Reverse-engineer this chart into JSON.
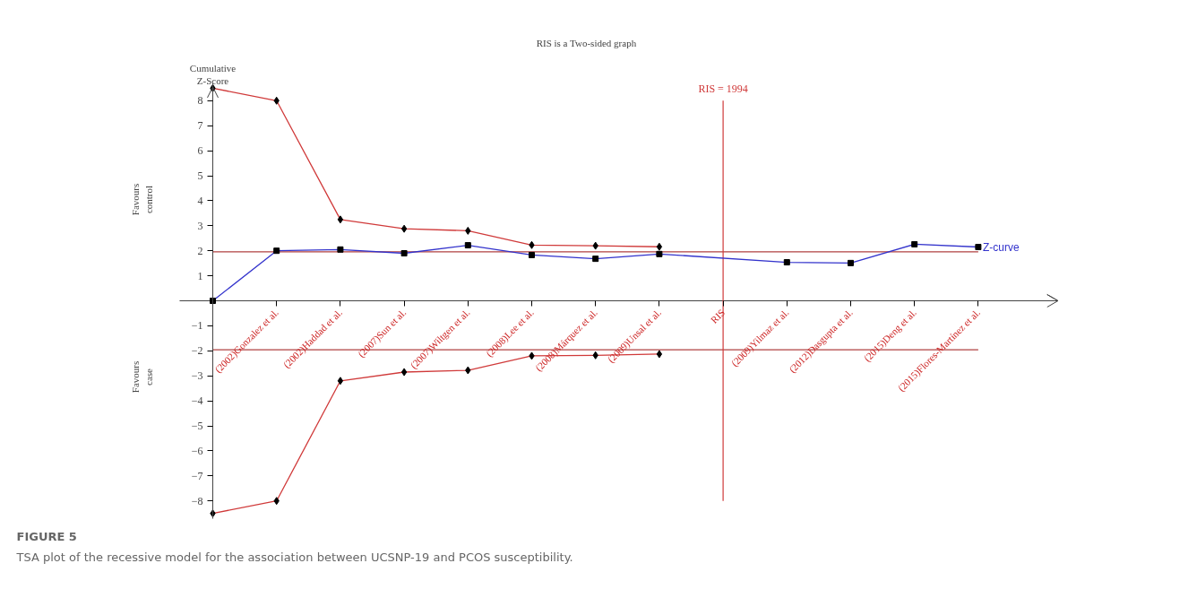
{
  "chart_data": {
    "type": "line",
    "title": "RIS is a Two-sided graph",
    "categories": [
      null,
      "(2002)Gonzalez et al.",
      "(2002)Haddad et al.",
      "(2007)Sun et al.",
      "(2007)Wiltgen et al.",
      "(2008)Lee et al.",
      "(2008)Márquez et al.",
      "(2009)Unsal et al.",
      "RIS",
      "(2009)Yilmaz et al.",
      "(2012)Dasgupta et al.",
      "(2015)Deng et al.",
      "(2015)Flores-Martínez et al."
    ],
    "series": [
      {
        "name": "Z-curve",
        "color": "#3333cc",
        "marker": "square",
        "values": [
          0,
          2.0,
          2.05,
          1.9,
          2.22,
          1.83,
          1.68,
          1.87,
          null,
          1.54,
          1.51,
          2.26,
          2.15
        ]
      },
      {
        "color": "#d03a3a",
        "marker": "diamond",
        "values": [
          8.5,
          8.0,
          3.25,
          2.88,
          2.8,
          2.23,
          2.2,
          2.16,
          null,
          null,
          null,
          null,
          null
        ]
      },
      {
        "color": "#d03a3a",
        "marker": "diamond",
        "values": [
          -8.5,
          -8.0,
          -3.2,
          -2.85,
          -2.78,
          -2.2,
          -2.18,
          -2.13,
          null,
          null,
          null,
          null,
          null
        ]
      }
    ],
    "ylim": [
      -8.7,
      8.7
    ],
    "yticks": [
      -8,
      -7,
      -6,
      -5,
      -4,
      -3,
      -2,
      -1,
      1,
      2,
      3,
      4,
      5,
      6,
      7,
      8
    ],
    "ref_lines": [
      {
        "axis": "y",
        "value": 1.96,
        "label": null,
        "color": "#b04040"
      },
      {
        "axis": "y",
        "value": -1.96,
        "label": null,
        "color": "#b04040"
      },
      {
        "axis": "x",
        "value": "RIS",
        "label": "RIS = 1994",
        "color": "#d03a3a"
      }
    ],
    "annotations": [
      "Cumulative\nZ-Score",
      "Favours\ncontrol",
      "Favours\ncase",
      "FIGURE 5",
      "TSA plot of the recessive model for the association between UCSNP-19 and PCOS susceptibility."
    ],
    "grid": false,
    "legend": "right"
  }
}
